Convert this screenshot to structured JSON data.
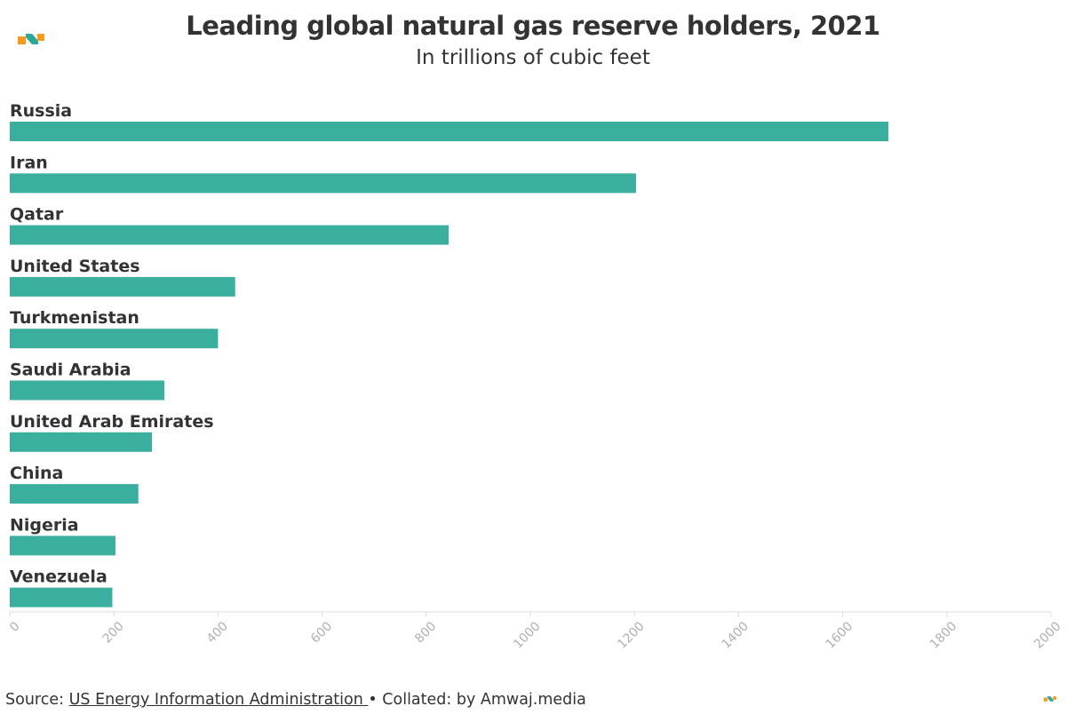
{
  "header": {
    "title": "Leading global natural gas reserve holders, 2021",
    "subtitle": "In trillions of cubic feet"
  },
  "footer": {
    "source_prefix": "Source:",
    "source_link": "US Energy Information Administration ",
    "collated": "• Collated: by Amwaj.media"
  },
  "brand": {
    "logo_icon": "amwaj-logo-icon",
    "accent_orange": "#f59a1f",
    "accent_teal": "#2aa89a"
  },
  "chart_data": {
    "type": "bar",
    "orientation": "horizontal",
    "categories": [
      "Russia",
      "Iran",
      "Qatar",
      "United States",
      "Turkmenistan",
      "Saudi Arabia",
      "United Arab Emirates",
      "China",
      "Nigeria",
      "Venezuela"
    ],
    "values": [
      1688,
      1203,
      843,
      433,
      400,
      297,
      273,
      247,
      203,
      197
    ],
    "xlim": [
      0,
      2000
    ],
    "xticks": [
      0,
      200,
      400,
      600,
      800,
      1000,
      1200,
      1400,
      1600,
      1800,
      2000
    ],
    "bar_color": "#3aaf9f",
    "grid": false,
    "legend": "none"
  }
}
